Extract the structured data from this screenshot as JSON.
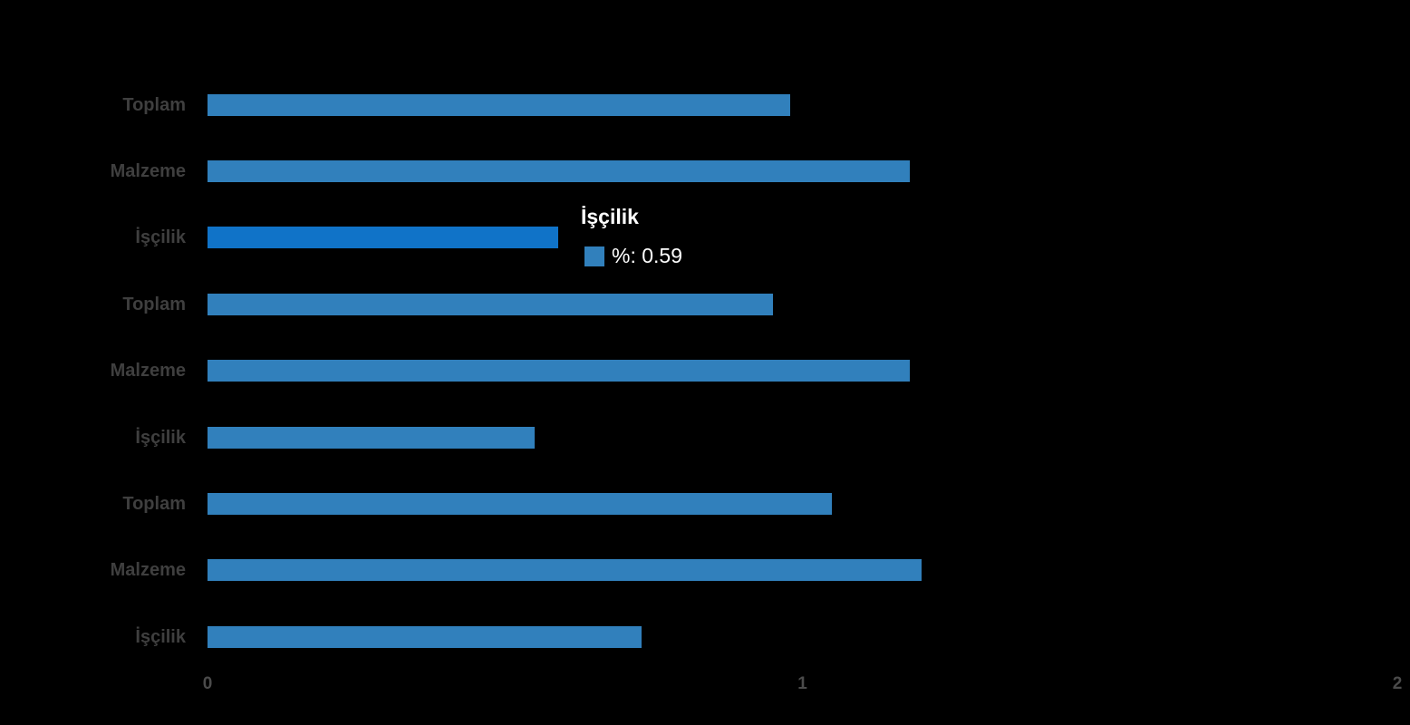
{
  "chart_data": {
    "type": "bar",
    "orientation": "horizontal",
    "title": "",
    "xlabel": "",
    "ylabel": "",
    "categories": [
      "Toplam",
      "Malzeme",
      "İşçilik",
      "Toplam",
      "Malzeme",
      "İşçilik",
      "Toplam",
      "Malzeme",
      "İşçilik"
    ],
    "values": [
      0.98,
      1.18,
      0.59,
      0.95,
      1.18,
      0.55,
      1.05,
      1.2,
      0.73
    ],
    "highlighted_index": 2,
    "xlim": [
      0,
      2
    ],
    "xticks": [
      0,
      1,
      2
    ],
    "xtick_labels": [
      "0",
      "1",
      "2"
    ],
    "grid": false,
    "legend": "none",
    "groups": [
      {
        "categories": [
          "Toplam",
          "Malzeme",
          "İşçilik"
        ],
        "values": [
          0.98,
          1.18,
          0.59
        ]
      },
      {
        "categories": [
          "Toplam",
          "Malzeme",
          "İşçilik"
        ],
        "values": [
          0.95,
          1.18,
          0.55
        ]
      },
      {
        "categories": [
          "Toplam",
          "Malzeme",
          "İşçilik"
        ],
        "values": [
          1.05,
          1.2,
          0.73
        ]
      }
    ]
  },
  "tooltip": {
    "title": "İşçilik",
    "series_name": "%",
    "value": "0.59",
    "text": "%: 0.59"
  },
  "colors": {
    "background": "#000000",
    "bar": "#3180bc",
    "bar_highlight": "#1073c8",
    "category_label": "#3f3f3f",
    "tick_label": "#4b4b4b",
    "tooltip_text": "#ffffff"
  }
}
